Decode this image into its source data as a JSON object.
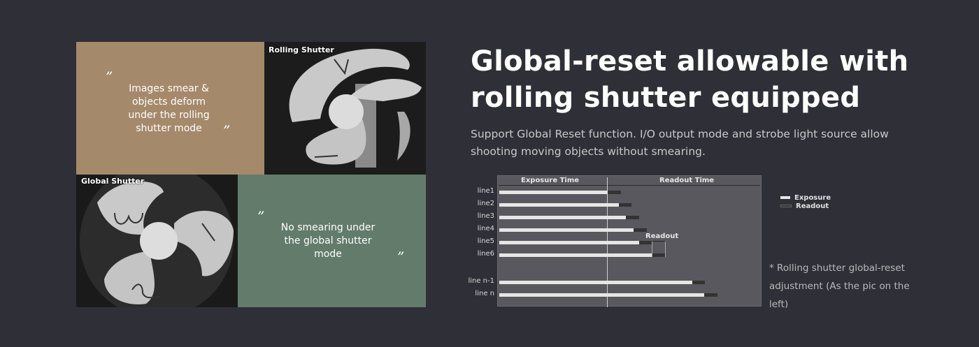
{
  "panels": {
    "rolling_text": "Images smear & objects deform under the rolling shutter mode",
    "rolling_photo_label": "Rolling Shutter",
    "global_photo_label": "Global Shutter",
    "global_text": "No smearing under the global shutter mode",
    "quote_open": "”",
    "quote_close": "”",
    "colors": {
      "rolling_bg": "#a5896b",
      "global_bg": "#637b6b"
    }
  },
  "heading": "Global-reset allowable with rolling shutter equipped",
  "description": "Support Global Reset function. I/O output mode and strobe light source allow shooting moving objects without smearing.",
  "diagram": {
    "header_exposure": "Exposure Time",
    "header_readout": "Readout Time",
    "readout_annotation": "Readout",
    "rows": [
      {
        "label": "line1",
        "exposure": 1.0,
        "readout": 0.12
      },
      {
        "label": "line2",
        "exposure": 1.1,
        "readout": 0.12
      },
      {
        "label": "line3",
        "exposure": 1.17,
        "readout": 0.12
      },
      {
        "label": "line4",
        "exposure": 1.24,
        "readout": 0.12
      },
      {
        "label": "line5",
        "exposure": 1.29,
        "readout": 0.12
      },
      {
        "label": "line6",
        "exposure": 1.41,
        "readout": 0.12
      },
      {
        "label": "line n-1",
        "exposure": 1.78,
        "readout": 0.12
      },
      {
        "label": "line n",
        "exposure": 1.89,
        "readout": 0.12
      }
    ],
    "legend": [
      {
        "label": "Exposure",
        "color": "#e8e8e8"
      },
      {
        "label": "Readout",
        "color": "#333333"
      }
    ]
  },
  "note": "* Rolling shutter global-reset adjustment (As the pic on the left)"
}
